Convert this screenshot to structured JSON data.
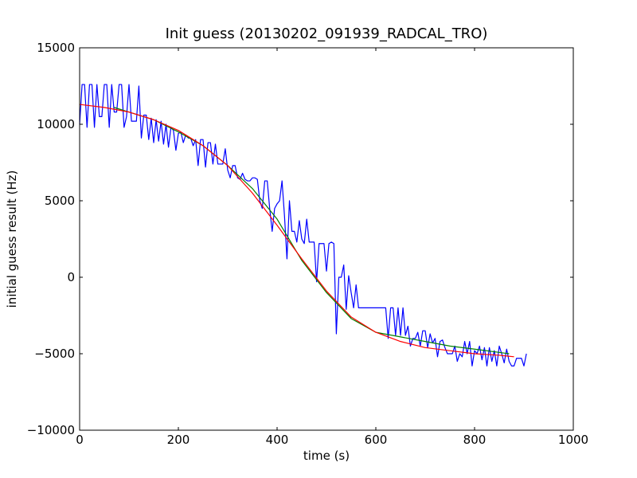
{
  "chart_data": {
    "type": "line",
    "title": "Init guess (20130202_091939_RADCAL_TRO)",
    "xlabel": "time (s)",
    "ylabel": "initial guess result (Hz)",
    "xlim": [
      0,
      1000
    ],
    "ylim": [
      -10000,
      15000
    ],
    "xticks": [
      0,
      200,
      400,
      600,
      800,
      1000
    ],
    "yticks": [
      -10000,
      -5000,
      0,
      5000,
      10000,
      15000
    ],
    "xtick_labels": [
      "0",
      "200",
      "400",
      "600",
      "800",
      "1000"
    ],
    "ytick_labels": [
      "−10000",
      "−5000",
      "0",
      "5000",
      "10000",
      "15000"
    ],
    "grid": false,
    "legend": "none",
    "series": [
      {
        "color": "#0000ff",
        "x": [
          0,
          5,
          10,
          15,
          20,
          25,
          30,
          35,
          40,
          45,
          50,
          55,
          60,
          65,
          70,
          75,
          80,
          85,
          90,
          95,
          100,
          105,
          110,
          115,
          120,
          125,
          130,
          135,
          140,
          145,
          150,
          155,
          160,
          165,
          170,
          175,
          180,
          185,
          190,
          195,
          200,
          205,
          210,
          215,
          220,
          225,
          230,
          235,
          240,
          245,
          250,
          255,
          260,
          265,
          270,
          275,
          280,
          285,
          290,
          295,
          300,
          305,
          310,
          315,
          320,
          325,
          330,
          335,
          340,
          345,
          350,
          355,
          360,
          365,
          370,
          375,
          380,
          385,
          390,
          395,
          400,
          405,
          410,
          415,
          420,
          425,
          430,
          435,
          440,
          445,
          450,
          455,
          460,
          465,
          470,
          475,
          480,
          485,
          490,
          495,
          500,
          505,
          510,
          515,
          520,
          525,
          530,
          535,
          540,
          545,
          550,
          555,
          560,
          565,
          570,
          575,
          580,
          585,
          590,
          595,
          600,
          605,
          610,
          615,
          620,
          625,
          630,
          635,
          640,
          645,
          650,
          655,
          660,
          665,
          670,
          675,
          680,
          685,
          690,
          695,
          700,
          705,
          710,
          715,
          720,
          725,
          730,
          735,
          740,
          745,
          750,
          755,
          760,
          765,
          770,
          775,
          780,
          785,
          790,
          795,
          800,
          805,
          810,
          815,
          820,
          825,
          830,
          835,
          840,
          845,
          850,
          855,
          860,
          865,
          870,
          875,
          880,
          885,
          890,
          895,
          900,
          905
        ],
        "y": [
          10000,
          12600,
          12600,
          9800,
          12600,
          12600,
          9800,
          12600,
          10500,
          10500,
          12600,
          12600,
          9800,
          12600,
          10800,
          10800,
          12600,
          12600,
          9800,
          10500,
          12600,
          10200,
          10200,
          10200,
          12500,
          9100,
          10600,
          10600,
          9000,
          10400,
          8800,
          10300,
          8900,
          10200,
          8700,
          10000,
          8500,
          9800,
          9600,
          8300,
          9400,
          9500,
          8800,
          9300,
          9100,
          9100,
          8600,
          9000,
          7300,
          9000,
          9000,
          7200,
          8800,
          8800,
          7400,
          8700,
          7400,
          7400,
          7400,
          8400,
          7000,
          6500,
          7300,
          7300,
          6500,
          6400,
          6800,
          6400,
          6300,
          6300,
          6500,
          6500,
          6400,
          5000,
          4500,
          6300,
          6300,
          4500,
          3000,
          4500,
          4800,
          5000,
          6300,
          4000,
          1200,
          5000,
          3000,
          3000,
          2300,
          3700,
          2500,
          2200,
          3800,
          2300,
          2300,
          2300,
          -300,
          2200,
          2200,
          2200,
          400,
          2200,
          2300,
          2200,
          -3700,
          0,
          0,
          800,
          -2100,
          100,
          -1000,
          -2000,
          -500,
          -2000,
          -2000,
          -2000,
          -2000,
          -2000,
          -2000,
          -2000,
          -2000,
          -2000,
          -2000,
          -2000,
          -2000,
          -4000,
          -2000,
          -2000,
          -3800,
          -2000,
          -3800,
          -2000,
          -3800,
          -3200,
          -4500,
          -4000,
          -4000,
          -3600,
          -4500,
          -3500,
          -3500,
          -4600,
          -3700,
          -4300,
          -4000,
          -5200,
          -4200,
          -4100,
          -4600,
          -5000,
          -5000,
          -5000,
          -4500,
          -5500,
          -5000,
          -5200,
          -4200,
          -5000,
          -4200,
          -5800,
          -4800,
          -5000,
          -4500,
          -5400,
          -4600,
          -5800,
          -4600,
          -5500,
          -4800,
          -5800,
          -4500,
          -5000,
          -5600,
          -4700,
          -5500,
          -5800,
          -5800,
          -5300,
          -5300,
          -5300,
          -5800,
          -5000
        ]
      },
      {
        "color": "#008000",
        "x": [
          70,
          100,
          150,
          200,
          250,
          300,
          350,
          400,
          450,
          500,
          550,
          600,
          650,
          700,
          750,
          800,
          870
        ],
        "y": [
          11100,
          10800,
          10300,
          9500,
          8600,
          7300,
          5800,
          3800,
          1100,
          -1000,
          -2700,
          -3600,
          -3900,
          -4200,
          -4500,
          -4700,
          -5000
        ]
      },
      {
        "color": "#ff0000",
        "x": [
          0,
          50,
          100,
          150,
          200,
          250,
          300,
          350,
          400,
          450,
          500,
          550,
          600,
          650,
          700,
          750,
          800,
          850,
          880
        ],
        "y": [
          11300,
          11100,
          10800,
          10300,
          9600,
          8600,
          7300,
          5500,
          3400,
          1200,
          -900,
          -2600,
          -3600,
          -4200,
          -4600,
          -4800,
          -5000,
          -5100,
          -5200
        ]
      }
    ]
  }
}
